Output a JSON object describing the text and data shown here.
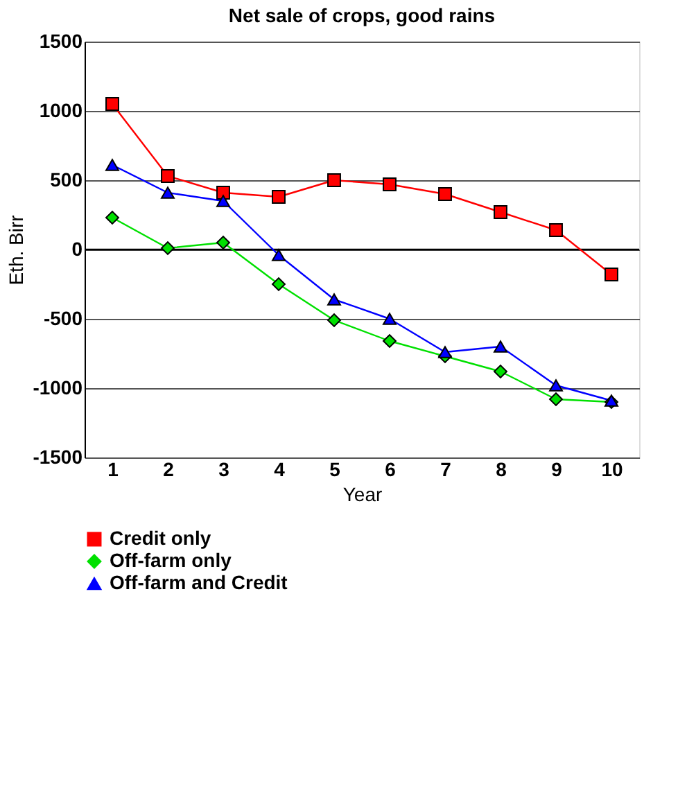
{
  "chart_data": {
    "type": "line",
    "title": "Net sale of crops, good rains",
    "xlabel": "Year",
    "ylabel": "Eth. Birr",
    "categories": [
      "1",
      "2",
      "3",
      "4",
      "5",
      "6",
      "7",
      "8",
      "9",
      "10"
    ],
    "series": [
      {
        "name": "Credit only",
        "color": "#ff0000",
        "marker": "square",
        "values": [
          1050,
          530,
          410,
          380,
          500,
          470,
          400,
          270,
          140,
          -180
        ]
      },
      {
        "name": "Off-farm only",
        "color": "#00e000",
        "marker": "diamond",
        "values": [
          230,
          10,
          50,
          -250,
          -510,
          -660,
          -770,
          -880,
          -1080,
          -1100
        ]
      },
      {
        "name": "Off-farm and Credit",
        "color": "#0000ff",
        "marker": "triangle",
        "values": [
          610,
          410,
          350,
          -40,
          -360,
          -500,
          -740,
          -700,
          -980,
          -1090
        ]
      }
    ],
    "ylim": [
      -1500,
      1500
    ],
    "yticks": [
      -1500,
      -1000,
      -500,
      0,
      500,
      1000,
      1500
    ],
    "grid": "y",
    "legend": "bottom",
    "line_style": "solid"
  }
}
